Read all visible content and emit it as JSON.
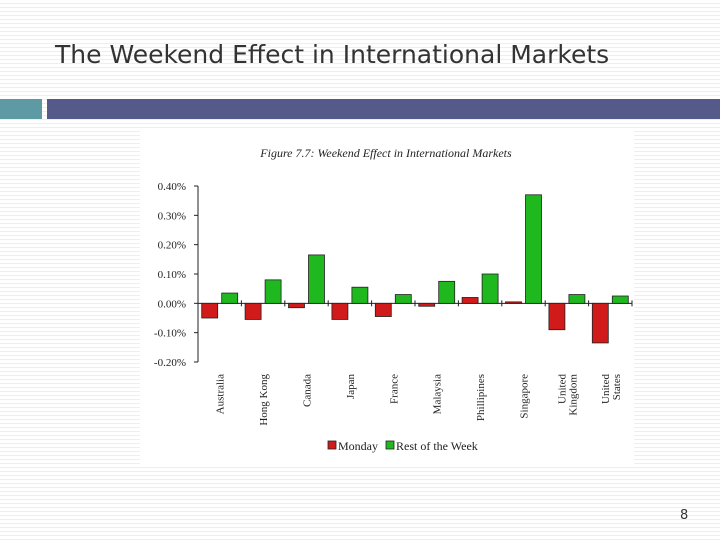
{
  "slide": {
    "title": "The Weekend Effect in International Markets",
    "page_number": "8"
  },
  "colors": {
    "accent_teal": "#5e9aa4",
    "accent_navy": "#555a8a",
    "monday": "#d11a1a",
    "rest_of_week": "#1fb81f"
  },
  "chart_data": {
    "type": "bar",
    "title": "Figure 7.7: Weekend Effect in International Markets",
    "categories": [
      "Australia",
      "Hong Kong",
      "Canada",
      "Japan",
      "France",
      "Malaysia",
      "Phillipines",
      "Singapore",
      "United Kingdom",
      "United States"
    ],
    "series": [
      {
        "name": "Monday",
        "color": "#d11a1a",
        "values": [
          -0.05,
          -0.055,
          -0.015,
          -0.055,
          -0.045,
          -0.01,
          0.02,
          0.005,
          -0.09,
          -0.135
        ]
      },
      {
        "name": "Rest of the Week",
        "color": "#1fb81f",
        "values": [
          0.035,
          0.08,
          0.165,
          0.055,
          0.03,
          0.075,
          0.1,
          0.37,
          0.03,
          0.025
        ]
      }
    ],
    "yticks": [
      "0.40%",
      "0.30%",
      "0.20%",
      "0.10%",
      "0.00%",
      "-0.10%",
      "-0.20%"
    ],
    "ylim": [
      -0.2,
      0.4
    ],
    "ylabel": "",
    "xlabel": "",
    "legend_position": "bottom"
  }
}
